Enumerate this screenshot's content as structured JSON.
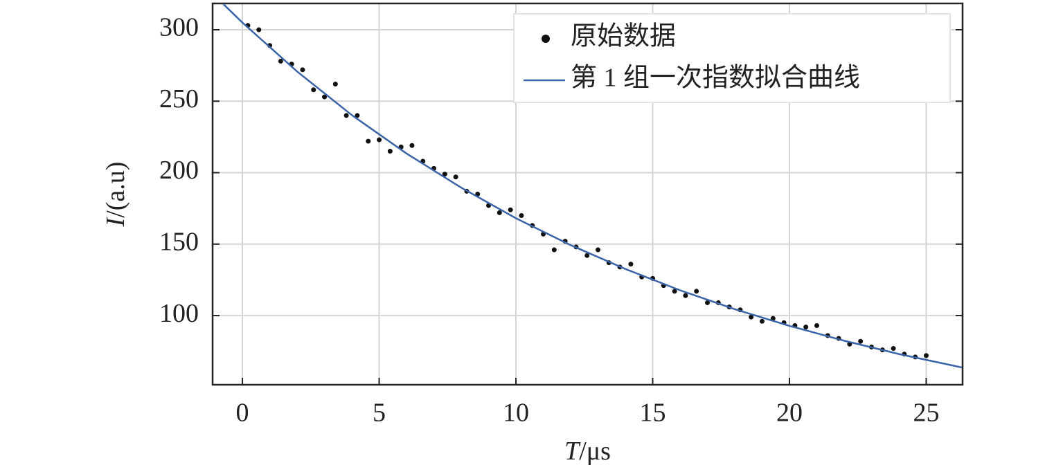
{
  "chart_data": {
    "type": "scatter",
    "xlabel": "T/μs",
    "ylabel": "I/(a.u)",
    "xlim": [
      -1.09,
      26.33
    ],
    "ylim": [
      51.6,
      318.4
    ],
    "xticks": [
      0,
      5,
      10,
      15,
      20,
      25
    ],
    "yticks": [
      100,
      150,
      200,
      250,
      300
    ],
    "grid": true,
    "legend": "upper right",
    "series": [
      {
        "name": "原始数据",
        "color": "#111111",
        "kind": "points",
        "x": [
          0.2,
          0.6,
          1.0,
          1.4,
          1.8,
          2.2,
          2.6,
          3.0,
          3.4,
          3.8,
          4.2,
          4.6,
          5.0,
          5.4,
          5.8,
          6.2,
          6.6,
          7.0,
          7.4,
          7.8,
          8.2,
          8.6,
          9.0,
          9.4,
          9.8,
          10.2,
          10.6,
          11.0,
          11.4,
          11.8,
          12.2,
          12.6,
          13.0,
          13.4,
          13.8,
          14.2,
          14.6,
          15.0,
          15.4,
          15.8,
          16.2,
          16.6,
          17.0,
          17.4,
          17.8,
          18.2,
          18.6,
          19.0,
          19.4,
          19.8,
          20.2,
          20.6,
          21.0,
          21.4,
          21.8,
          22.2,
          22.6,
          23.0,
          23.4,
          23.8,
          24.2,
          24.6,
          25.0
        ],
        "values": [
          303,
          300,
          289,
          278,
          276,
          272,
          258,
          253,
          262,
          240,
          240,
          222,
          223,
          215,
          218,
          219,
          208,
          203,
          199,
          197,
          187,
          185,
          177,
          172,
          174,
          170,
          163,
          157,
          146,
          152,
          148,
          142,
          146,
          137,
          134,
          136,
          127,
          126,
          121,
          117,
          114,
          117,
          109,
          109,
          106,
          104,
          99,
          96,
          98,
          95,
          93,
          92,
          93,
          86,
          84,
          80,
          82,
          78,
          76,
          77,
          73,
          71,
          72
        ]
      },
      {
        "name": "第 1 组一次指数拟合曲线",
        "color": "#3a64a8",
        "kind": "line",
        "x": [
          -0.7,
          0,
          2,
          4,
          6,
          8,
          10,
          12,
          14,
          16,
          18,
          20,
          22,
          24,
          26.3
        ],
        "values": [
          318,
          305,
          270.8,
          240.3,
          213.4,
          189.5,
          168.1,
          149.3,
          132.6,
          117.7,
          104.5,
          92.8,
          82.4,
          73.1,
          63.7
        ]
      }
    ]
  }
}
